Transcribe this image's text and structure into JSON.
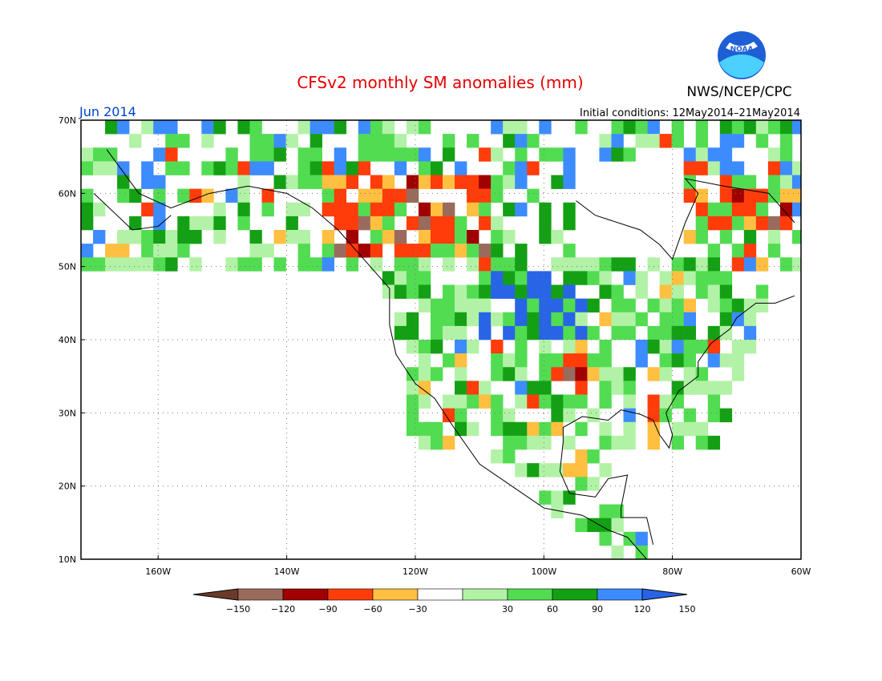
{
  "header": {
    "title": "CFSv2 monthly SM anomalies (mm)",
    "agency": "NWS/NCEP/CPC",
    "logo_text": "NOAA",
    "month": "Jun 2014",
    "initial_conditions": "Initial conditions: 12May2014–21May2014"
  },
  "map": {
    "lon_range": [
      -172,
      -60
    ],
    "lat_range": [
      10,
      70
    ],
    "lat_ticks": [
      "10N",
      "20N",
      "30N",
      "40N",
      "50N",
      "60N",
      "70N"
    ],
    "lon_ticks": [
      "160W",
      "140W",
      "120W",
      "100W",
      "80W",
      "60W"
    ]
  },
  "legend": {
    "labels": [
      "−150",
      "−120",
      "−90",
      "−60",
      "−30",
      "30",
      "60",
      "90",
      "120",
      "150"
    ],
    "colors": [
      "#6b3a2a",
      "#9a6b5c",
      "#a00000",
      "#ff3c0a",
      "#ffbf40",
      "#ffffff",
      "#b2f2a6",
      "#52dc52",
      "#14a014",
      "#3c8cff",
      "#2864e6"
    ]
  },
  "colors": {
    "title": "#e60000",
    "month": "#0044cc",
    "axis_text": "#000000",
    "noaa_blue": "#1e5fd6",
    "noaa_cyan": "#4cd0ff"
  }
}
